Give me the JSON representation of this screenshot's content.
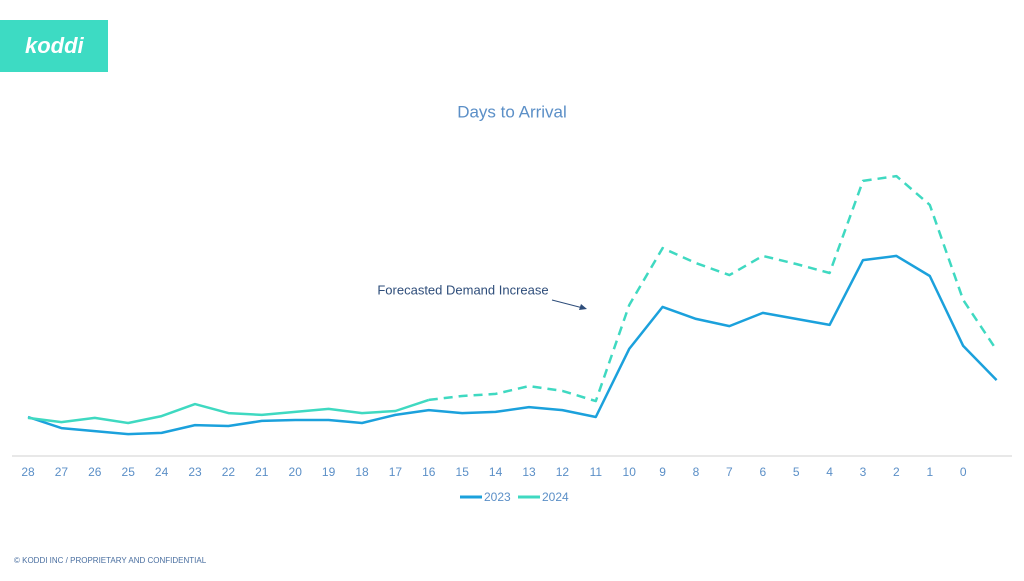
{
  "logo": "koddi",
  "footer": "© KODDI INC / PROPRIETARY AND CONFIDENTIAL",
  "chart_data": {
    "type": "line",
    "title": "Days to Arrival",
    "annotation": "Forecasted Demand Increase",
    "categories": [
      "28",
      "27",
      "26",
      "25",
      "24",
      "23",
      "22",
      "21",
      "20",
      "19",
      "18",
      "17",
      "16",
      "15",
      "14",
      "13",
      "12",
      "11",
      "10",
      "9",
      "8",
      "7",
      "6",
      "5",
      "4",
      "3",
      "2",
      "1",
      "0",
      null
    ],
    "series": [
      {
        "name": "2023",
        "color": "#1ba1dc",
        "values": [
          13,
          9.3,
          8.3,
          7.3,
          7.7,
          10.3,
          10,
          11.7,
          12,
          12,
          11,
          13.7,
          15.3,
          14.3,
          14.7,
          16.3,
          15.3,
          13,
          35.7,
          49.7,
          45.7,
          43.3,
          47.7,
          45.7,
          43.7,
          65.3,
          66.7,
          60,
          36.7,
          25.3
        ]
      },
      {
        "name": "2024",
        "color": "#3fd9c1",
        "dash_from_index": 12,
        "values": [
          12.7,
          11.3,
          12.7,
          11,
          13.3,
          17.3,
          14.3,
          13.7,
          14.7,
          15.7,
          14.3,
          15,
          18.7,
          20,
          20.7,
          23.3,
          21.7,
          18.3,
          50.3,
          69.3,
          64.3,
          60.3,
          66.7,
          64,
          61,
          91.7,
          93.3,
          83.7,
          52,
          35.3
        ]
      }
    ],
    "ylim": [
      0,
      100
    ],
    "legend": "bottom"
  }
}
